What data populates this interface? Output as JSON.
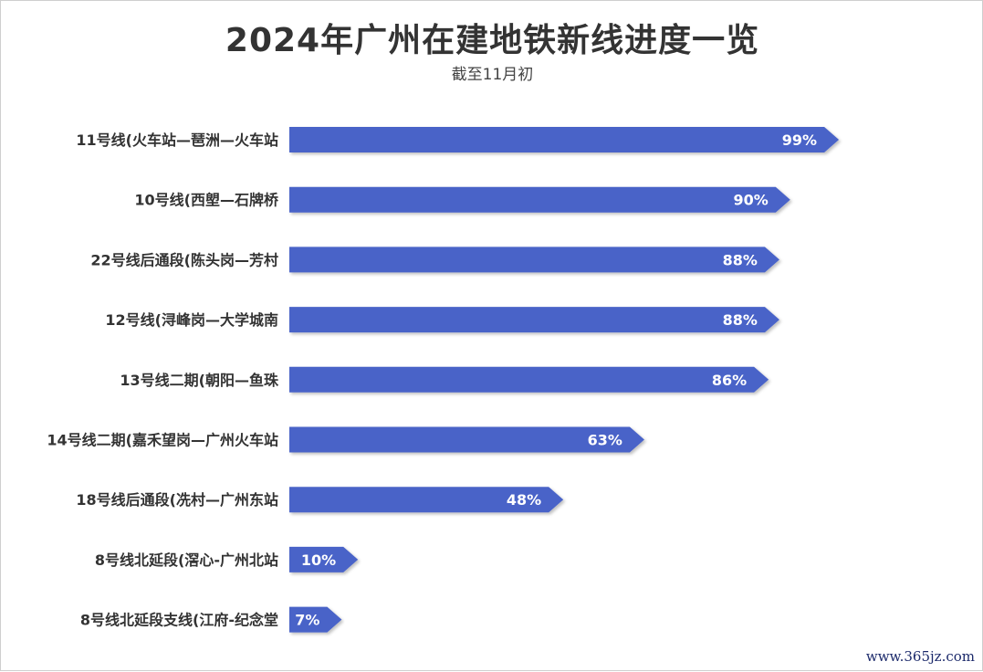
{
  "chart_data": {
    "type": "bar",
    "orientation": "horizontal",
    "title": "2024年广州在建地铁新线进度一览",
    "subtitle": "截至11月初",
    "categories": [
      "11号线(火车站—琶洲—火车站",
      "10号线(西塱—石牌桥",
      "22号线后通段(陈头岗—芳村",
      "12号线(浔峰岗—大学城南",
      "13号线二期(朝阳—鱼珠",
      "14号线二期(嘉禾望岗—广州火车站",
      "18号线后通段(冼村—广州东站",
      "8号线北延段(滘心-广州北站",
      "8号线北延段支线(江府-纪念堂"
    ],
    "values": [
      99,
      90,
      88,
      88,
      86,
      63,
      48,
      10,
      7
    ],
    "value_labels": [
      "99%",
      "90%",
      "88%",
      "88%",
      "86%",
      "63%",
      "48%",
      "10%",
      "7%"
    ],
    "xlim": [
      0,
      100
    ],
    "bar_color": "#4a63c8",
    "grid": false,
    "legend": "none"
  },
  "watermark": "www.365jz.com"
}
